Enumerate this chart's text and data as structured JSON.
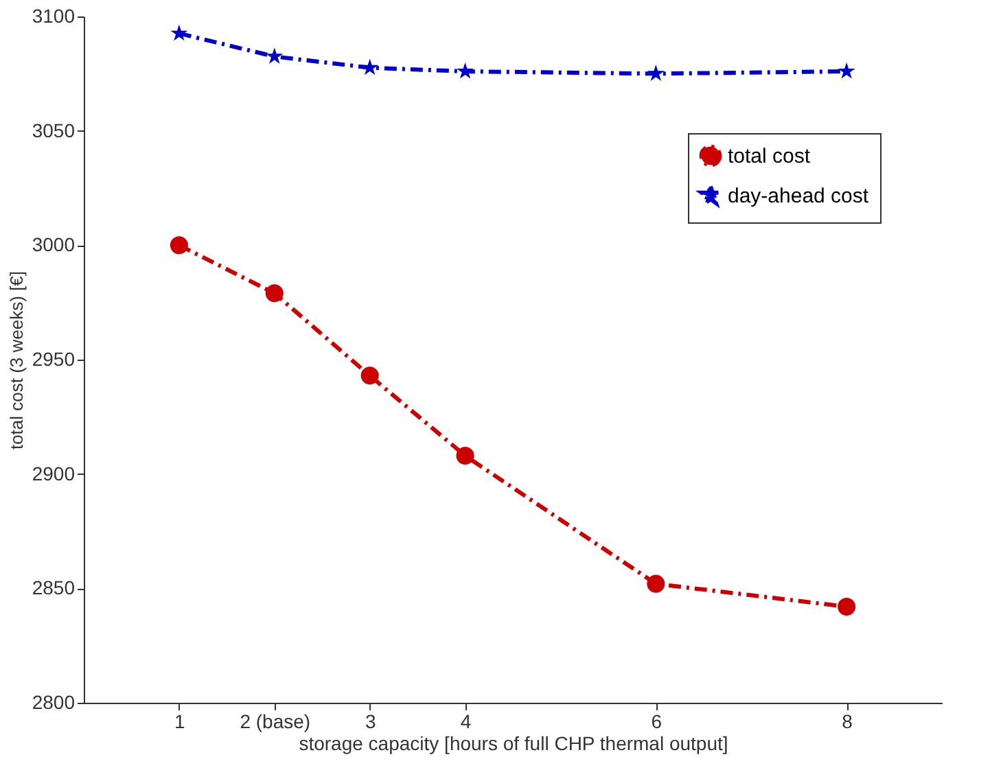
{
  "chart_data": {
    "type": "line",
    "xlabel": "storage capacity [hours of full CHP thermal output]",
    "ylabel": "total cost (3 weeks) [€]",
    "x": [
      1,
      2,
      3,
      4,
      6,
      8
    ],
    "series": [
      {
        "name": "total cost",
        "color": "#cc0000",
        "marker": "circle",
        "line_style": "dashed",
        "values": [
          3000,
          2979,
          2943,
          2908,
          2852,
          2842
        ]
      },
      {
        "name": "day-ahead cost",
        "color": "#0000cc",
        "marker": "star",
        "line_style": "dashed",
        "values": [
          3092.6,
          3082.5,
          3077.6,
          3076,
          3075,
          3076
        ]
      }
    ],
    "xlim": [
      0,
      9
    ],
    "xticks": [
      1,
      {
        "value": 2,
        "label": "2 (base)"
      },
      3,
      4,
      6,
      8
    ],
    "ylim": [
      2800,
      3100
    ],
    "yticks": [
      2800,
      2850,
      2900,
      2950,
      3000,
      3050,
      3100
    ],
    "grid": false,
    "legend": "top right"
  }
}
